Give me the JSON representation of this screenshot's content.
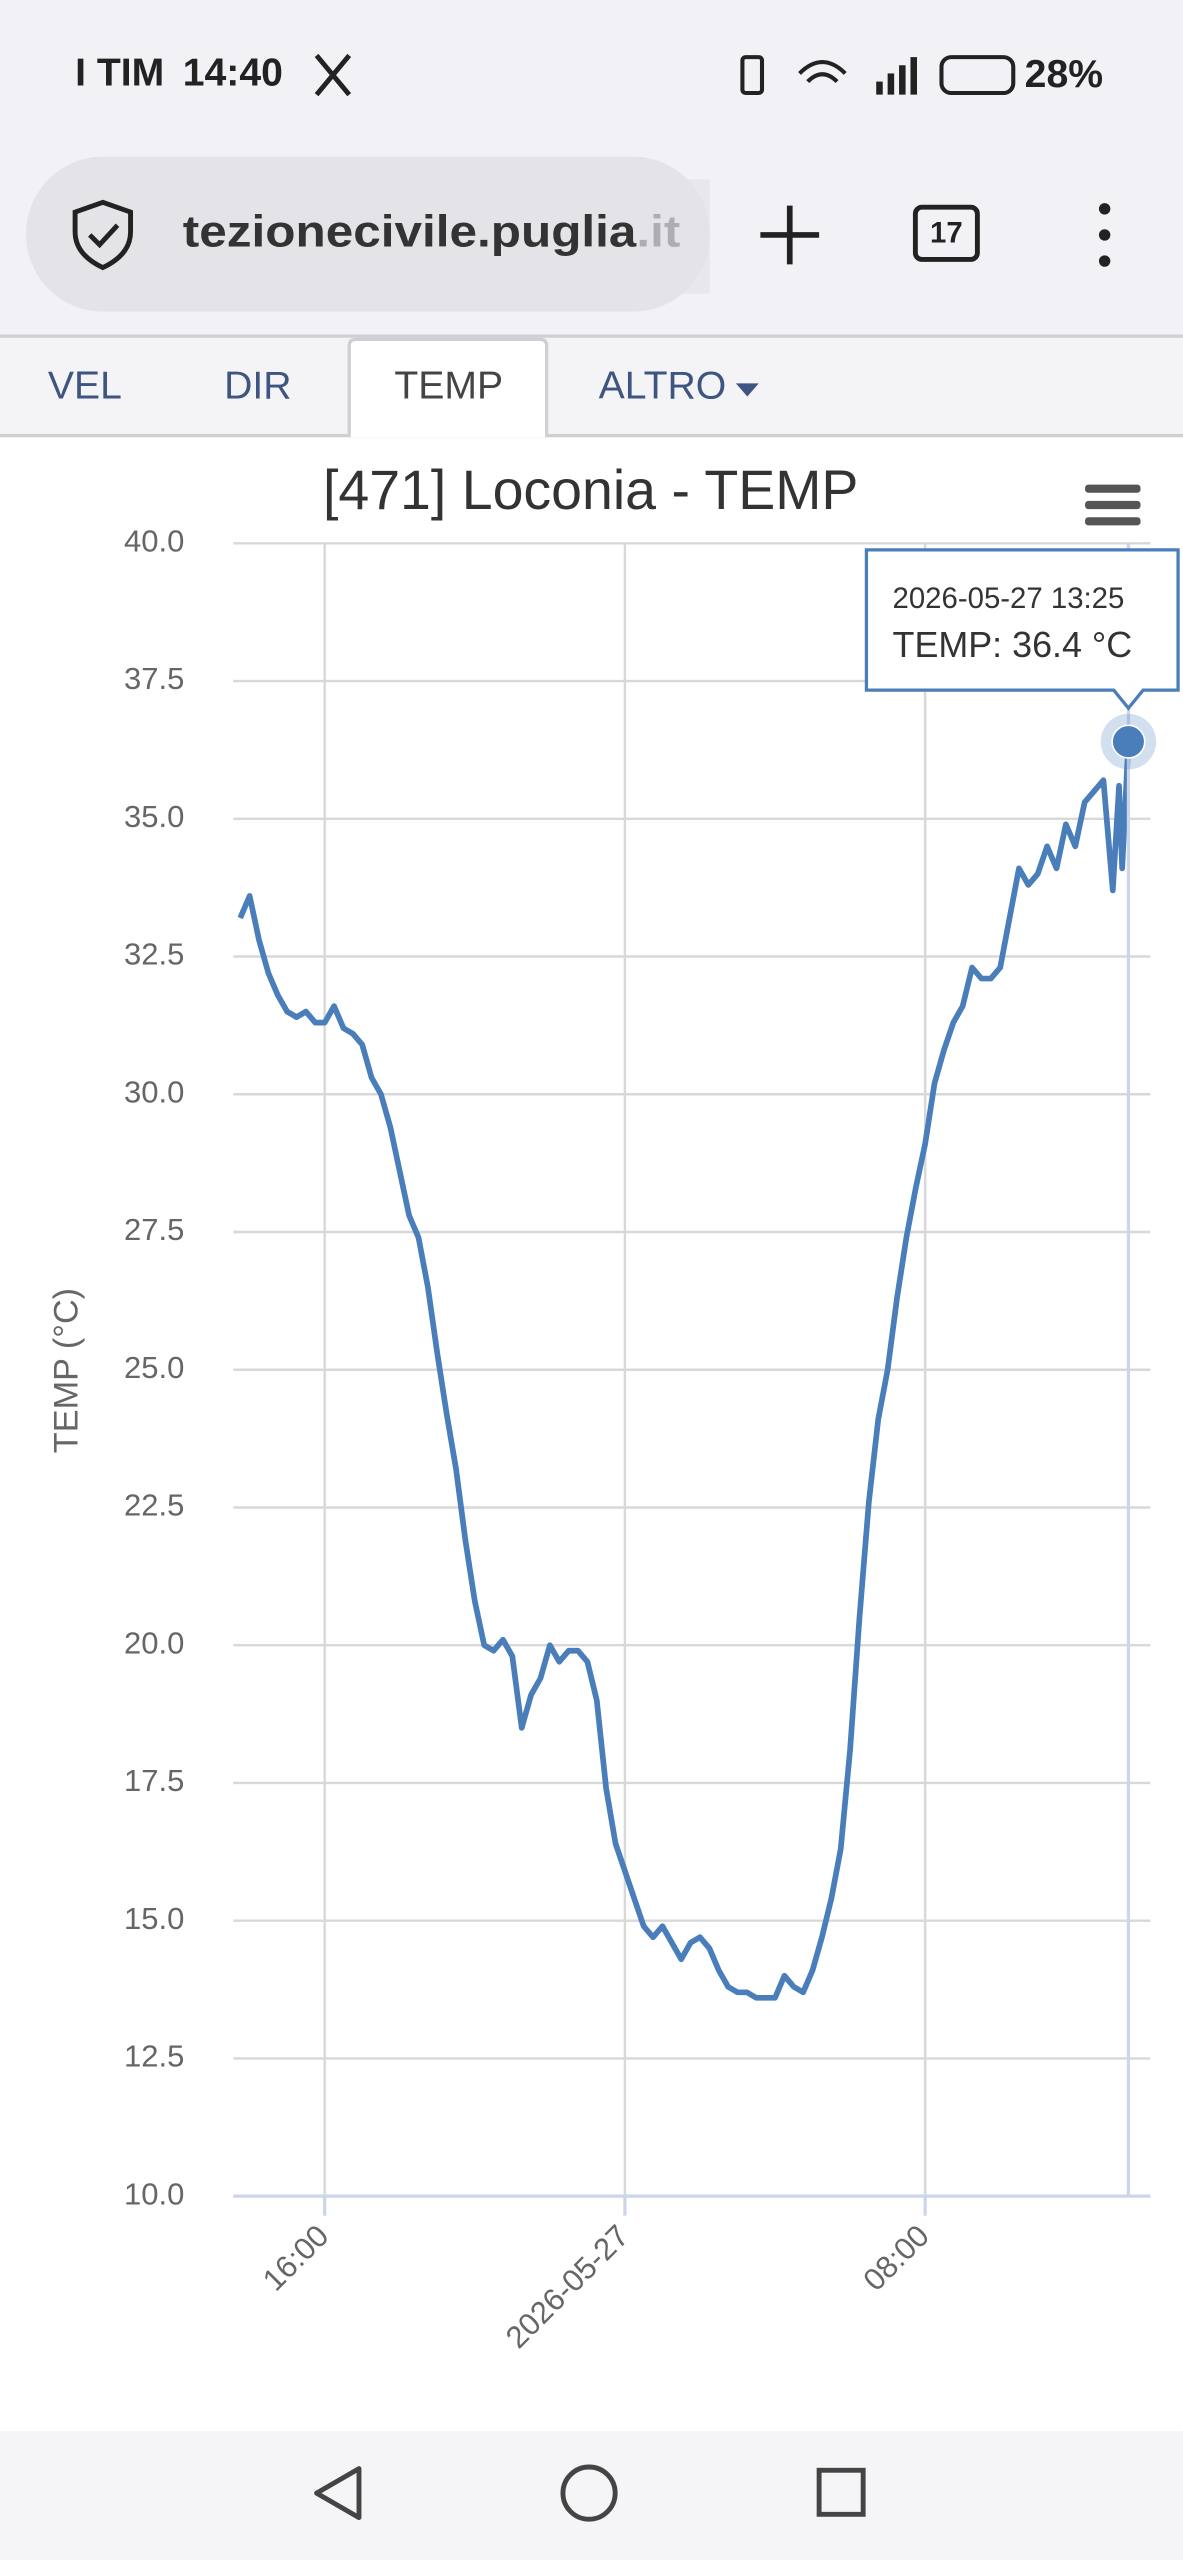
{
  "status_bar": {
    "carrier": "I TIM",
    "time": "14:40",
    "battery": "28%"
  },
  "browser": {
    "url": "tezionecivile.puglia.it",
    "tab_count": "17"
  },
  "tabs": [
    "VEL",
    "DIR",
    "TEMP",
    "ALTRO"
  ],
  "active_tab": 2,
  "chart_data": {
    "type": "line",
    "title": "[471] Loconia - TEMP",
    "y_label": "TEMP (°C)",
    "x": [
      "2026-05-26 13:45",
      "2026-05-26 14:00",
      "2026-05-26 14:15",
      "2026-05-26 14:30",
      "2026-05-26 14:45",
      "2026-05-26 15:00",
      "2026-05-26 15:15",
      "2026-05-26 15:30",
      "2026-05-26 15:45",
      "2026-05-26 16:00",
      "2026-05-26 16:15",
      "2026-05-26 16:30",
      "2026-05-26 16:45",
      "2026-05-26 17:00",
      "2026-05-26 17:15",
      "2026-05-26 17:30",
      "2026-05-26 17:45",
      "2026-05-26 18:00",
      "2026-05-26 18:15",
      "2026-05-26 18:30",
      "2026-05-26 18:45",
      "2026-05-26 19:00",
      "2026-05-26 19:15",
      "2026-05-26 19:30",
      "2026-05-26 19:45",
      "2026-05-26 20:00",
      "2026-05-26 20:15",
      "2026-05-26 20:30",
      "2026-05-26 20:45",
      "2026-05-26 21:00",
      "2026-05-26 21:15",
      "2026-05-26 21:30",
      "2026-05-26 21:45",
      "2026-05-26 22:00",
      "2026-05-26 22:15",
      "2026-05-26 22:30",
      "2026-05-26 22:45",
      "2026-05-26 23:00",
      "2026-05-26 23:15",
      "2026-05-26 23:30",
      "2026-05-26 23:45",
      "2026-05-27 00:00",
      "2026-05-27 00:15",
      "2026-05-27 00:30",
      "2026-05-27 00:45",
      "2026-05-27 01:00",
      "2026-05-27 01:15",
      "2026-05-27 01:30",
      "2026-05-27 01:45",
      "2026-05-27 02:00",
      "2026-05-27 02:15",
      "2026-05-27 02:30",
      "2026-05-27 02:45",
      "2026-05-27 03:00",
      "2026-05-27 03:15",
      "2026-05-27 03:30",
      "2026-05-27 03:45",
      "2026-05-27 04:00",
      "2026-05-27 04:15",
      "2026-05-27 04:30",
      "2026-05-27 04:45",
      "2026-05-27 05:00",
      "2026-05-27 05:15",
      "2026-05-27 05:30",
      "2026-05-27 05:45",
      "2026-05-27 06:00",
      "2026-05-27 06:15",
      "2026-05-27 06:30",
      "2026-05-27 06:45",
      "2026-05-27 07:00",
      "2026-05-27 07:15",
      "2026-05-27 07:30",
      "2026-05-27 07:45",
      "2026-05-27 08:00",
      "2026-05-27 08:15",
      "2026-05-27 08:30",
      "2026-05-27 08:45",
      "2026-05-27 09:00",
      "2026-05-27 09:15",
      "2026-05-27 09:30",
      "2026-05-27 09:45",
      "2026-05-27 10:00",
      "2026-05-27 10:15",
      "2026-05-27 10:30",
      "2026-05-27 10:45",
      "2026-05-27 11:00",
      "2026-05-27 11:15",
      "2026-05-27 11:30",
      "2026-05-27 11:45",
      "2026-05-27 12:00",
      "2026-05-27 12:15",
      "2026-05-27 12:30",
      "2026-05-27 12:45",
      "2026-05-27 13:00",
      "2026-05-27 13:10",
      "2026-05-27 13:15",
      "2026-05-27 13:25"
    ],
    "series": [
      {
        "color": "#4a7ebb",
        "values": [
          33.2,
          33.6,
          32.8,
          32.2,
          31.8,
          31.5,
          31.4,
          31.5,
          31.3,
          31.3,
          31.6,
          31.2,
          31.1,
          30.9,
          30.3,
          30.0,
          29.4,
          28.6,
          27.8,
          27.4,
          26.5,
          25.3,
          24.2,
          23.2,
          21.9,
          20.8,
          20.0,
          19.9,
          20.1,
          19.8,
          18.5,
          19.1,
          19.4,
          20.0,
          19.7,
          19.9,
          19.9,
          19.7,
          19.0,
          17.4,
          16.4,
          15.9,
          15.4,
          14.9,
          14.7,
          14.9,
          14.6,
          14.3,
          14.6,
          14.7,
          14.5,
          14.1,
          13.8,
          13.7,
          13.7,
          13.6,
          13.6,
          13.6,
          14.0,
          13.8,
          13.7,
          14.1,
          14.7,
          15.4,
          16.3,
          18.1,
          20.5,
          22.6,
          24.1,
          25.0,
          26.3,
          27.4,
          28.3,
          29.1,
          30.2,
          30.8,
          31.3,
          31.6,
          32.3,
          32.1,
          32.1,
          32.3,
          33.2,
          34.1,
          33.8,
          34.0,
          34.5,
          34.1,
          34.9,
          34.5,
          35.3,
          35.5,
          35.7,
          33.7,
          35.6,
          34.1,
          36.4
        ]
      }
    ],
    "xlim": [
      "2026-05-26 13:34",
      "2026-05-27 14:00"
    ],
    "xticks": [
      {
        "value": "2026-05-26 16:00",
        "label": "16:00"
      },
      {
        "value": "2026-05-27 00:00",
        "label": "2026-05-27"
      },
      {
        "value": "2026-05-27 08:00",
        "label": "08:00"
      }
    ],
    "ylim": [
      10,
      40
    ],
    "yticks": [
      {
        "value": 10,
        "label": "10.0"
      },
      12.5,
      {
        "value": 15,
        "label": "15.0"
      },
      17.5,
      {
        "value": 20,
        "label": "20.0"
      },
      22.5,
      {
        "value": 25,
        "label": "25.0"
      },
      27.5,
      {
        "value": 30,
        "label": "30.0"
      },
      32.5,
      {
        "value": 35,
        "label": "35.0"
      },
      37.5,
      {
        "value": 40,
        "label": "40.0"
      }
    ],
    "grid": true,
    "tooltip": {
      "header": "2026-05-27 13:25",
      "text": "TEMP: 36.4 °C"
    }
  }
}
